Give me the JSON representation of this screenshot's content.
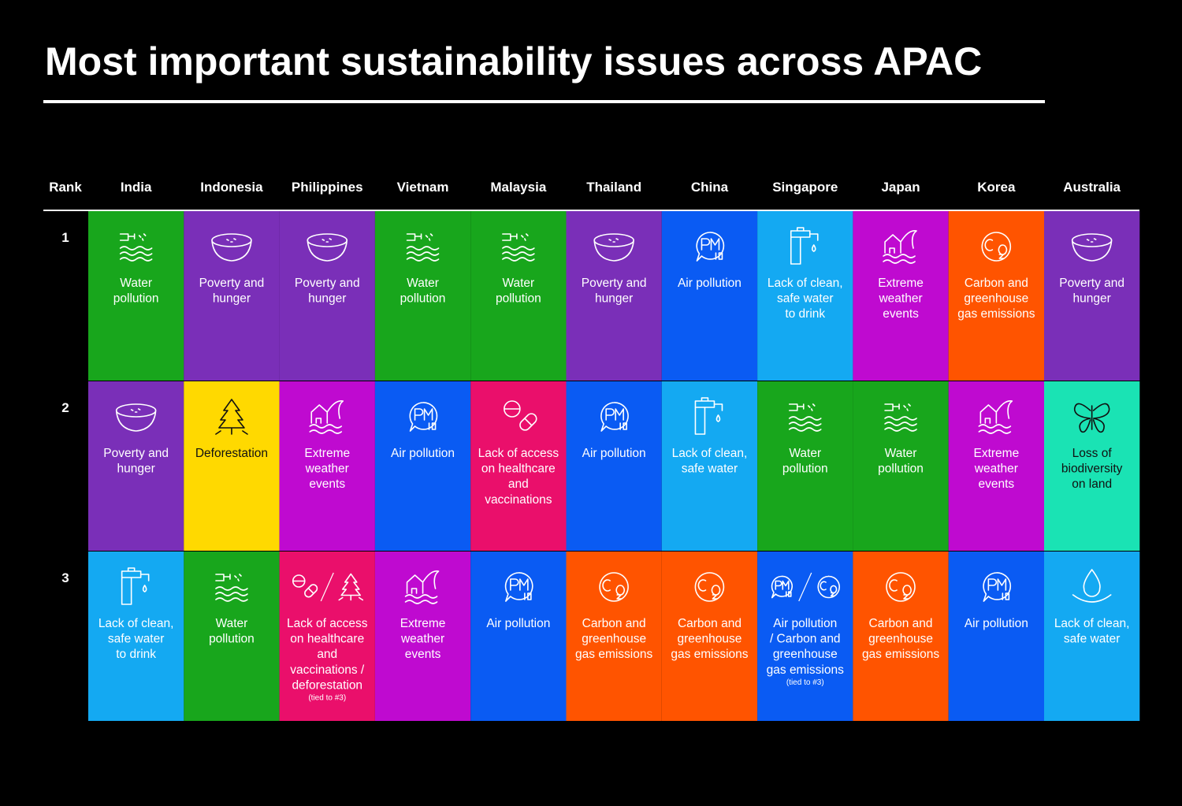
{
  "title": "Most important sustainability issues across APAC",
  "table": {
    "header": [
      "Rank",
      "India",
      "Indonesia",
      "Philippines",
      "Vietnam",
      "Malaysia",
      "Thailand",
      "China",
      "Singapore",
      "Japan",
      "Korea",
      "Australia"
    ],
    "rows": [
      {
        "rank": 1,
        "cells": [
          {
            "lines": [
              "Water",
              "pollution"
            ],
            "color": "#18a61c"
          },
          {
            "lines": [
              "Poverty and",
              "hunger"
            ],
            "color": "#7a2fb8"
          },
          {
            "lines": [
              "Poverty and",
              "hunger"
            ],
            "color": "#7a2fb8"
          },
          {
            "lines": [
              "Water",
              "pollution"
            ],
            "color": "#18a61c"
          },
          {
            "lines": [
              "Water",
              "pollution"
            ],
            "color": "#18a61c"
          },
          {
            "lines": [
              "Poverty and",
              "hunger"
            ],
            "color": "#7a2fb8"
          },
          {
            "lines": [
              "Air pollution"
            ],
            "color": "#0a5bf3"
          },
          {
            "lines": [
              "Lack of clean,",
              "safe water",
              "to drink"
            ],
            "color": "#14a9f2"
          },
          {
            "lines": [
              "Extreme",
              "weather",
              "events"
            ],
            "color": "#bf0ad0"
          },
          {
            "lines": [
              "Carbon and",
              "greenhouse",
              "gas emissions"
            ],
            "color": "#ff5400"
          },
          {
            "lines": [
              "Poverty and",
              "hunger"
            ],
            "color": "#7a2fb8"
          }
        ]
      },
      {
        "rank": 2,
        "cells": [
          {
            "lines": [
              "Poverty and",
              "hunger"
            ],
            "color": "#7a2fb8"
          },
          {
            "lines": [
              "Deforestation"
            ],
            "color": "#ffd900"
          },
          {
            "lines": [
              "Extreme",
              "weather",
              "events"
            ],
            "color": "#bf0ad0"
          },
          {
            "lines": [
              "Air pollution"
            ],
            "color": "#0a5bf3"
          },
          {
            "lines": [
              "Lack of access",
              "on healthcare",
              "and",
              "vaccinations"
            ],
            "color": "#ea0f6b"
          },
          {
            "lines": [
              "Air pollution"
            ],
            "color": "#0a5bf3"
          },
          {
            "lines": [
              "Lack of clean,",
              "safe water"
            ],
            "color": "#14a9f2"
          },
          {
            "lines": [
              "Water",
              "pollution"
            ],
            "color": "#18a61c"
          },
          {
            "lines": [
              "Water",
              "pollution"
            ],
            "color": "#18a61c"
          },
          {
            "lines": [
              "Extreme",
              "weather",
              "events"
            ],
            "color": "#bf0ad0"
          },
          {
            "lines": [
              "Loss of",
              "biodiversity",
              "on land"
            ],
            "color": "#1ae3b4"
          }
        ]
      },
      {
        "rank": 3,
        "cells": [
          {
            "lines": [
              "Lack of clean,",
              "safe water",
              "to drink"
            ],
            "color": "#14a9f2"
          },
          {
            "lines": [
              "Water",
              "pollution"
            ],
            "color": "#18a61c"
          },
          {
            "lines": [
              "Lack of access",
              "on healthcare",
              "and",
              "vaccinations /",
              "deforestation"
            ],
            "note": "(tied to #3)",
            "color": "#ea0f6b"
          },
          {
            "lines": [
              "Extreme",
              "weather",
              "events"
            ],
            "color": "#bf0ad0"
          },
          {
            "lines": [
              "Air pollution"
            ],
            "color": "#0a5bf3"
          },
          {
            "lines": [
              "Carbon and",
              "greenhouse",
              "gas emissions"
            ],
            "color": "#ff5400"
          },
          {
            "lines": [
              "Carbon and",
              "greenhouse",
              "gas emissions"
            ],
            "color": "#ff5400"
          },
          {
            "lines": [
              "Air pollution",
              "/ Carbon and",
              "greenhouse",
              "gas emissions"
            ],
            "note": "(tied to #3)",
            "color": "#0a5bf3"
          },
          {
            "lines": [
              "Carbon and",
              "greenhouse",
              "gas emissions"
            ],
            "color": "#ff5400"
          },
          {
            "lines": [
              "Air pollution"
            ],
            "color": "#0a5bf3"
          },
          {
            "lines": [
              "Lack of clean,",
              "safe water"
            ],
            "color": "#14a9f2"
          }
        ]
      }
    ]
  }
}
